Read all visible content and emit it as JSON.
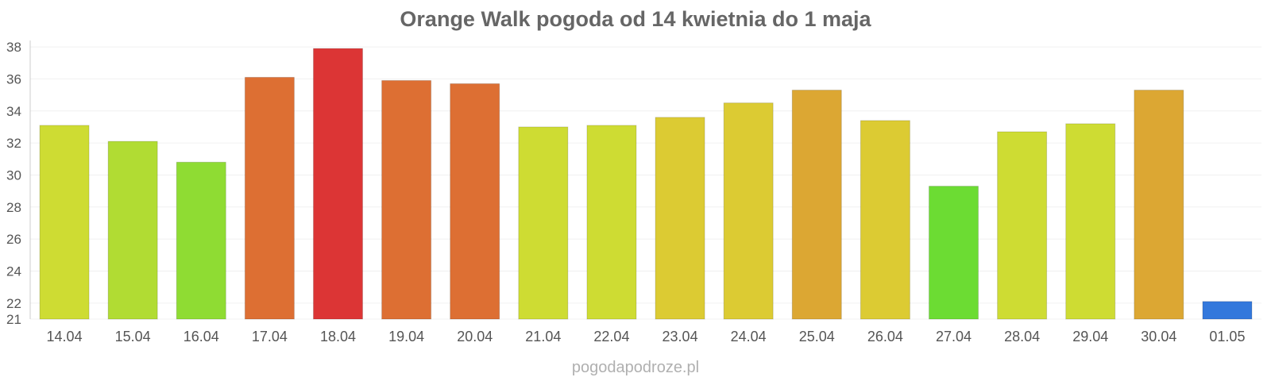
{
  "chart_data": {
    "type": "bar",
    "title": "Orange Walk pogoda od 14 kwietnia do 1 maja",
    "xlabel": "",
    "ylabel": "",
    "categories": [
      "14.04",
      "15.04",
      "16.04",
      "17.04",
      "18.04",
      "19.04",
      "20.04",
      "21.04",
      "22.04",
      "23.04",
      "24.04",
      "25.04",
      "26.04",
      "27.04",
      "28.04",
      "29.04",
      "30.04",
      "01.05"
    ],
    "values": [
      33.1,
      32.1,
      30.8,
      36.1,
      37.9,
      35.9,
      35.7,
      33.0,
      33.1,
      33.6,
      34.5,
      35.3,
      33.4,
      29.3,
      32.7,
      33.2,
      35.3,
      22.1
    ],
    "colors": [
      "#cedc33",
      "#b1dc33",
      "#8fdc33",
      "#dd6f33",
      "#dc3535",
      "#dd6f33",
      "#dd6f33",
      "#cedc33",
      "#cedc33",
      "#dccb33",
      "#dccb33",
      "#dca733",
      "#dccb33",
      "#6cdc33",
      "#cedc33",
      "#cedc33",
      "#dca733",
      "#3378dc"
    ],
    "ylim": [
      21,
      38.4
    ],
    "yticks": [
      "21",
      "22",
      "24",
      "26",
      "28",
      "30",
      "32",
      "34",
      "36",
      "38"
    ],
    "grid": true,
    "legend": "none"
  },
  "footer": {
    "watermark": "pogodapodroze.pl"
  }
}
